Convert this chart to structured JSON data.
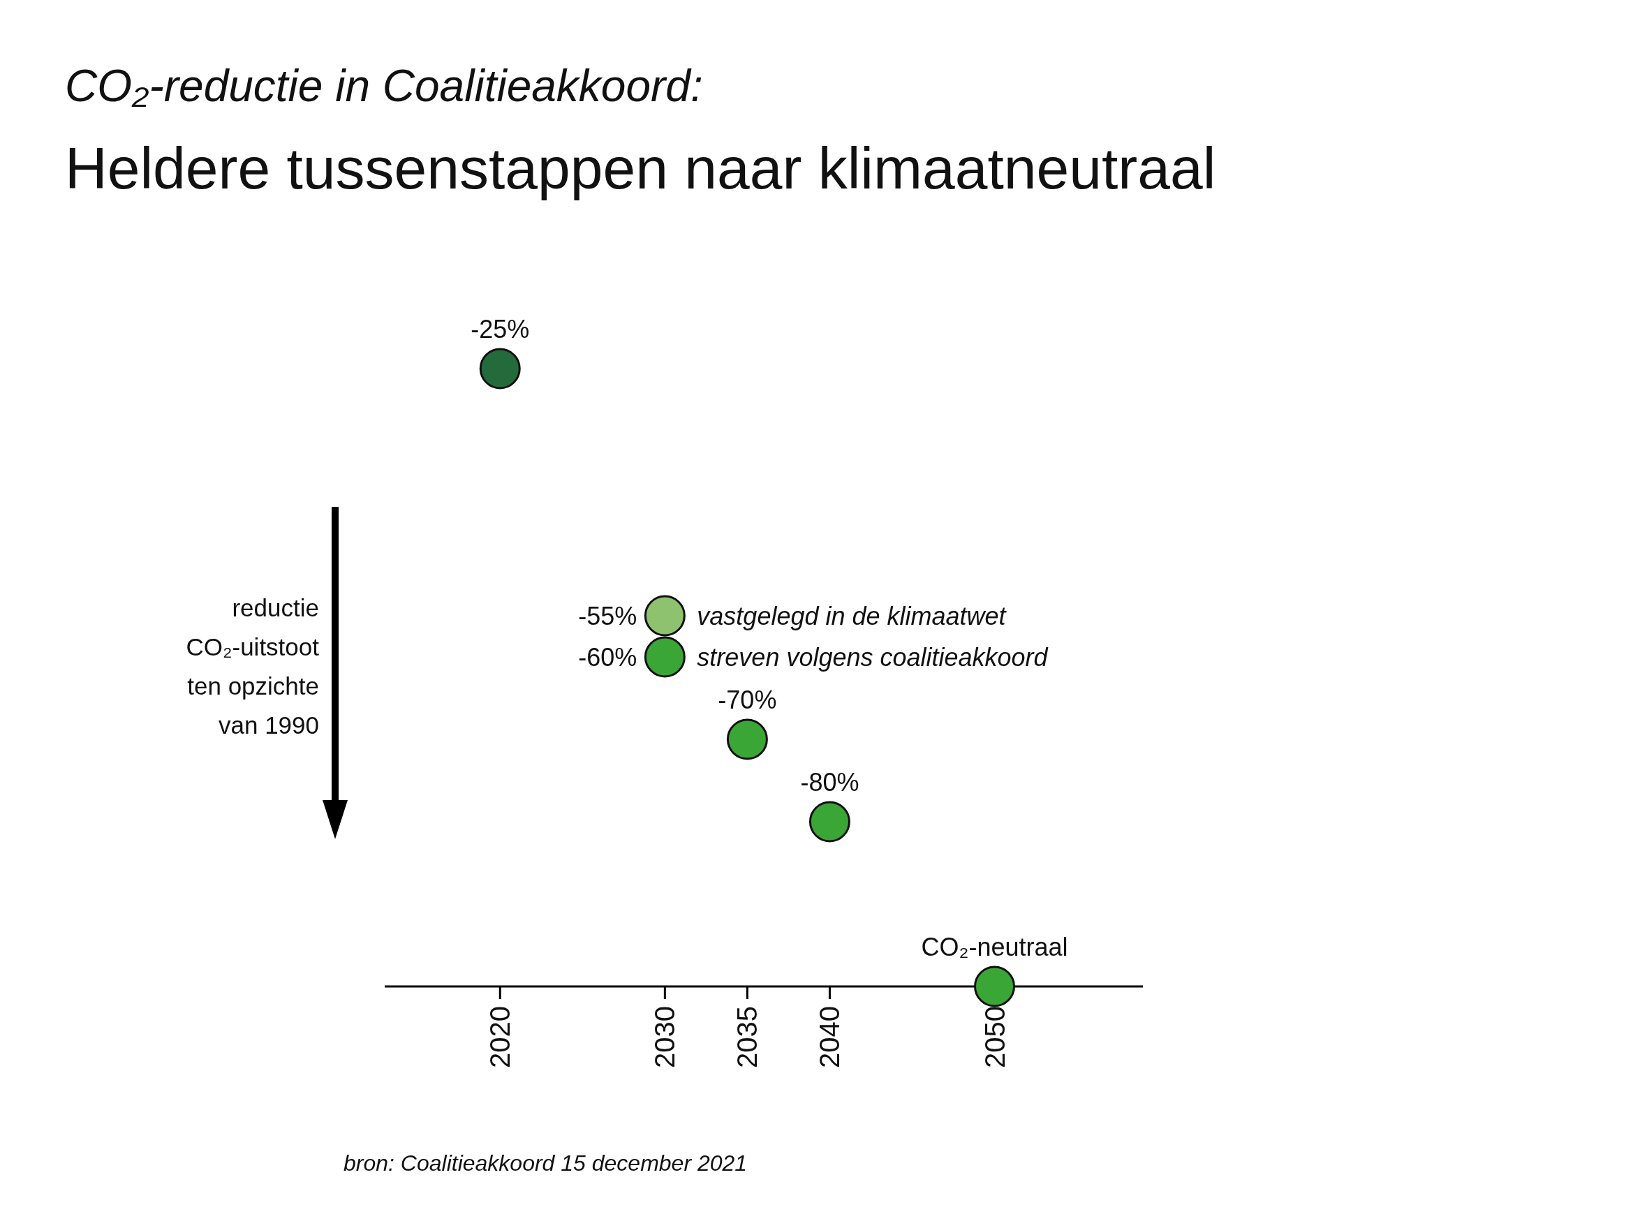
{
  "chart_data": {
    "type": "scatter",
    "title": "Heldere tussenstappen naar klimaatneutraal",
    "subtitle": "CO₂-reductie in Coalitieakkoord:",
    "ylabel": "reductie CO₂-uitstoot ten opzichte van 1990",
    "annotations": [
      "bron: Coalitieakkoord 15 december 2021"
    ],
    "series": [
      {
        "color": "#246b3b",
        "x": [
          2020
        ],
        "values": [
          -25
        ],
        "value_labels": [
          "-25%"
        ]
      },
      {
        "name": "vastgelegd in de klimaatwet",
        "color": "#8fc26e",
        "x": [
          2030
        ],
        "values": [
          -55
        ],
        "value_labels": [
          "-55%"
        ]
      },
      {
        "name": "streven volgens coalitieakkoord",
        "color": "#3aa636",
        "x": [
          2030,
          2035,
          2040,
          2050
        ],
        "values": [
          -60,
          -70,
          -80,
          -100
        ],
        "value_labels": [
          "-60%",
          "-70%",
          "-80%",
          "CO₂-neutraal"
        ]
      }
    ],
    "xlim": [
      2013,
      2059
    ],
    "xticks": [
      2020,
      2030,
      2035,
      2040,
      2050
    ],
    "tick_labels": "x",
    "grid": false,
    "legend": false,
    "marker": "circle"
  }
}
